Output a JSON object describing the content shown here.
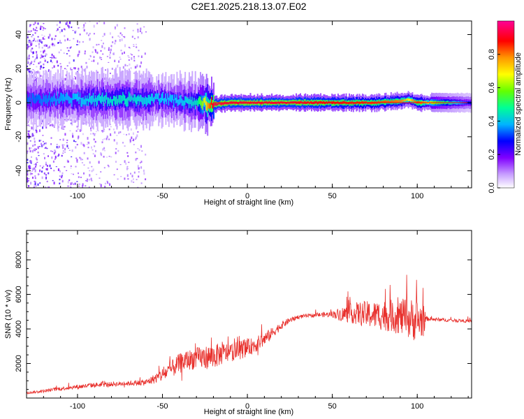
{
  "title": "C2E1.2025.218.13.07.E02",
  "colors": {
    "snr_line": "#e8302c",
    "frame": "#000000",
    "background": "#ffffff"
  },
  "chart_data": [
    {
      "type": "heatmap",
      "xlabel": "Height of straight line (km)",
      "ylabel": "Frequency (Hz)",
      "xlim": [
        -130,
        132
      ],
      "ylim": [
        -50,
        48
      ],
      "x_ticks": [
        -100,
        -50,
        0,
        50,
        100
      ],
      "y_ticks": [
        -40,
        -20,
        0,
        20,
        40
      ],
      "grid": false,
      "colorbar": {
        "label": "Normalized spectral amplitude",
        "range": [
          0,
          1
        ],
        "ticks": [
          "0.0",
          "0.2",
          "0.4",
          "0.6",
          "0.8"
        ],
        "colormap": [
          "#ffffff",
          "#b07cff",
          "#7f00ff",
          "#0000ff",
          "#00c8ff",
          "#00ff80",
          "#80ff00",
          "#ffff00",
          "#ff8000",
          "#ff0000",
          "#ff0080"
        ]
      },
      "ridge": {
        "x": [
          -125,
          -100,
          -75,
          -50,
          -40,
          -30,
          -20,
          -10,
          0,
          25,
          50,
          75,
          90,
          95,
          100,
          110,
          130
        ],
        "center_hz": [
          2,
          2,
          2,
          2,
          1,
          0,
          -1,
          0,
          0,
          0,
          0,
          0,
          1,
          2,
          0,
          0,
          0
        ],
        "amplitude": [
          0.35,
          0.4,
          0.45,
          0.4,
          0.4,
          0.45,
          0.95,
          0.95,
          0.95,
          0.95,
          0.9,
          0.85,
          0.8,
          0.7,
          0.85,
          0.6,
          0.3
        ]
      }
    },
    {
      "type": "line",
      "xlabel": "Height of straight line (km)",
      "ylabel": "SNR (10 * v/v)",
      "xlim": [
        -130,
        132
      ],
      "ylim": [
        0,
        9700
      ],
      "x_ticks": [
        -100,
        -50,
        0,
        50,
        100
      ],
      "y_ticks": [
        2000,
        4000,
        6000,
        8000
      ],
      "grid": false,
      "series": [
        {
          "color": "#e8302c",
          "x": [
            -130,
            -120,
            -110,
            -100,
            -90,
            -80,
            -70,
            -60,
            -55,
            -50,
            -45,
            -40,
            -35,
            -30,
            -25,
            -20,
            -15,
            -10,
            -5,
            0,
            5,
            10,
            15,
            20,
            25,
            30,
            40,
            50,
            55,
            60,
            65,
            70,
            75,
            80,
            85,
            90,
            95,
            100,
            104,
            105,
            110,
            120,
            132
          ],
          "y": [
            300,
            400,
            550,
            650,
            750,
            800,
            850,
            900,
            1100,
            1350,
            1650,
            2000,
            2200,
            2300,
            2350,
            2400,
            2550,
            2650,
            2750,
            2900,
            3100,
            3400,
            3800,
            4200,
            4500,
            4700,
            4800,
            4850,
            4850,
            4900,
            4900,
            4850,
            4800,
            4800,
            4750,
            4700,
            4600,
            4500,
            4500,
            4600,
            4550,
            4500,
            4450
          ],
          "noise_amplitude": [
            150,
            200,
            250,
            300,
            300,
            300,
            300,
            400,
            600,
            900,
            1100,
            1300,
            1300,
            1400,
            1500,
            1600,
            1400,
            1200,
            1200,
            1100,
            1000,
            900,
            700,
            500,
            350,
            250,
            250,
            400,
            900,
            1200,
            1500,
            1700,
            1800,
            2000,
            2100,
            2300,
            2600,
            2800,
            2000,
            300,
            250,
            200,
            200
          ]
        }
      ]
    }
  ]
}
